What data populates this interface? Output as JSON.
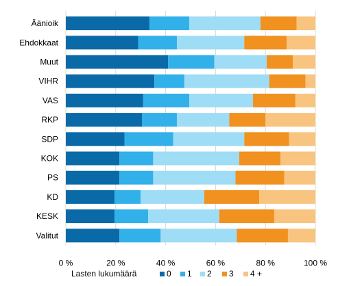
{
  "chart_data": {
    "type": "bar",
    "orientation": "horizontal",
    "stacked": "percent",
    "categories": [
      "Äänioik",
      "Ehdokkaat",
      "Muut",
      "VIHR",
      "VAS",
      "RKP",
      "SDP",
      "KOK",
      "PS",
      "KD",
      "KESK",
      "Valitut"
    ],
    "series": [
      {
        "name": "0",
        "color": "#0a6aa8",
        "values": [
          33.5,
          29.0,
          41.0,
          35.5,
          31.0,
          30.5,
          23.5,
          21.5,
          21.5,
          19.5,
          19.5,
          21.5
        ]
      },
      {
        "name": "1",
        "color": "#32b0ea",
        "values": [
          16.0,
          15.5,
          18.5,
          12.0,
          18.5,
          14.0,
          19.5,
          13.5,
          13.5,
          10.5,
          13.5,
          16.5
        ]
      },
      {
        "name": "2",
        "color": "#9fdcf5",
        "values": [
          28.5,
          27.0,
          21.0,
          34.0,
          25.5,
          21.0,
          28.5,
          34.5,
          33.0,
          25.5,
          28.5,
          30.5
        ]
      },
      {
        "name": "3",
        "color": "#f09120",
        "values": [
          14.5,
          17.0,
          10.5,
          14.5,
          17.0,
          14.5,
          18.0,
          16.5,
          19.5,
          22.0,
          22.0,
          20.5
        ]
      },
      {
        "name": "4 +",
        "color": "#f9c47f",
        "values": [
          7.5,
          11.5,
          9.0,
          4.0,
          8.0,
          20.0,
          10.5,
          14.0,
          12.5,
          22.5,
          16.5,
          11.0
        ]
      }
    ],
    "xlim": [
      0,
      100
    ],
    "x_ticks": [
      "0 %",
      "20 %",
      "40 %",
      "60 %",
      "80 %",
      "100 %"
    ],
    "grid": true,
    "legend_title": "Lasten lukumäärä",
    "legend_position": "bottom"
  }
}
